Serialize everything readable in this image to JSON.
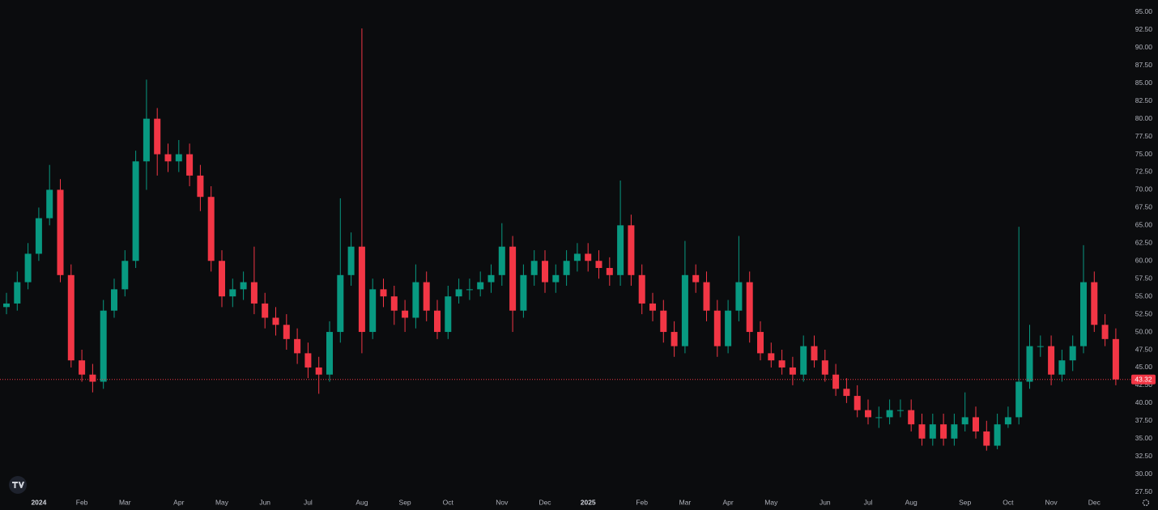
{
  "chart_data": {
    "type": "candlestick",
    "up_color": "#089981",
    "down_color": "#f23645",
    "categories": [
      null,
      null,
      null,
      "2024",
      null,
      null,
      null,
      "Feb",
      null,
      null,
      null,
      "Mar",
      null,
      null,
      null,
      null,
      "Apr",
      null,
      null,
      null,
      "May",
      null,
      null,
      null,
      "Jun",
      null,
      null,
      null,
      "Jul",
      null,
      null,
      null,
      null,
      "Aug",
      null,
      null,
      null,
      "Sep",
      null,
      null,
      null,
      "Oct",
      null,
      null,
      null,
      null,
      "Nov",
      null,
      null,
      null,
      "Dec",
      null,
      null,
      null,
      "2025",
      null,
      null,
      null,
      null,
      "Feb",
      null,
      null,
      null,
      "Mar",
      null,
      null,
      null,
      "Apr",
      null,
      null,
      null,
      "May",
      null,
      null,
      null,
      null,
      "Jun",
      null,
      null,
      null,
      "Jul",
      null,
      null,
      null,
      "Aug",
      null,
      null,
      null,
      null,
      "Sep",
      null,
      null,
      null,
      "Oct",
      null,
      null,
      null,
      "Nov",
      null,
      null,
      null,
      "Dec",
      null,
      null
    ],
    "open": [
      53.5,
      54,
      57,
      61,
      66,
      70,
      58,
      46,
      44,
      43,
      53,
      56,
      60,
      74,
      80,
      75,
      74,
      75,
      72,
      69,
      60,
      55,
      56,
      57,
      54,
      52,
      51,
      49,
      47,
      45,
      44,
      50,
      58,
      62,
      50,
      56,
      55,
      53,
      52,
      57,
      53,
      50,
      55,
      56,
      56,
      57,
      58,
      62,
      53,
      58,
      60,
      57,
      58,
      60,
      61,
      60,
      59,
      58,
      65,
      58,
      54,
      53,
      50,
      48,
      58,
      57,
      53,
      48,
      53,
      57,
      50,
      47,
      46,
      45,
      44,
      48,
      46,
      44,
      42,
      41,
      39,
      38,
      38,
      39,
      39,
      37,
      35,
      37,
      35,
      37,
      38,
      36,
      34,
      37,
      38,
      43,
      48,
      48,
      44,
      46,
      48,
      57,
      51,
      49
    ],
    "high": [
      55.5,
      58.5,
      62.5,
      67.5,
      73.5,
      71.5,
      59.5,
      47.5,
      45.5,
      54.5,
      57.5,
      61.5,
      75.5,
      85.5,
      81.5,
      76.5,
      77,
      76.5,
      73.5,
      70.5,
      61.5,
      57.5,
      58.5,
      62,
      55.5,
      53.5,
      52.5,
      50.5,
      48.5,
      46.5,
      51.5,
      68.8,
      64,
      92.7,
      57.5,
      57.5,
      56.5,
      54.5,
      59.5,
      58.5,
      54.5,
      56.5,
      57.5,
      57.5,
      58.5,
      59.5,
      65.3,
      63.5,
      59.5,
      61.5,
      61.5,
      59.5,
      61.5,
      62.5,
      62.5,
      61.5,
      60.5,
      71.3,
      66.5,
      59.5,
      55.5,
      54.5,
      51.5,
      62.8,
      59.5,
      58.5,
      54.5,
      54.5,
      63.5,
      58.5,
      51.5,
      48.5,
      47.5,
      46.5,
      49.5,
      49.5,
      47.5,
      45.5,
      43.5,
      42.5,
      40.5,
      39.5,
      40.5,
      40.5,
      40.5,
      38.5,
      38.5,
      38.5,
      38.5,
      41.5,
      39.5,
      37.5,
      38.5,
      39.5,
      64.8,
      51,
      49.5,
      49.5,
      47.5,
      49.5,
      62.2,
      58.5,
      52.5,
      50.5
    ],
    "low": [
      52.5,
      53,
      56,
      60,
      65,
      57,
      45,
      43,
      41.5,
      42,
      52,
      55,
      59,
      70,
      72,
      72.5,
      72.5,
      70.5,
      67,
      58.5,
      53.5,
      53.5,
      54.5,
      52.5,
      50.5,
      49.5,
      47.5,
      45.5,
      43.5,
      41.3,
      43,
      48.5,
      56.5,
      47,
      49,
      53.5,
      51,
      50,
      50.5,
      51.5,
      49,
      49,
      54,
      54.5,
      55,
      55.5,
      56.5,
      50,
      52,
      56.5,
      55.5,
      55.5,
      56.5,
      58.5,
      58.5,
      57.5,
      56.5,
      56.5,
      56.5,
      52.5,
      51.5,
      48.5,
      46.5,
      47,
      55.5,
      51.5,
      46.5,
      47,
      51.5,
      48.5,
      46,
      45,
      44,
      42.5,
      43,
      45,
      43,
      41,
      40,
      38,
      37,
      36.5,
      37,
      38,
      36,
      34,
      34,
      34,
      34,
      36,
      35,
      33.3,
      33.5,
      36.5,
      37,
      42,
      46.5,
      42.5,
      43,
      44.5,
      47,
      50,
      48,
      42.5
    ],
    "close": [
      54,
      57,
      61,
      66,
      70,
      58,
      46,
      44,
      43,
      53,
      56,
      60,
      74,
      80,
      75,
      74,
      75,
      72,
      69,
      60,
      55,
      56,
      57,
      54,
      52,
      51,
      49,
      47,
      45,
      44,
      50,
      58,
      62,
      50,
      56,
      55,
      53,
      52,
      57,
      53,
      50,
      55,
      56,
      56,
      57,
      58,
      62,
      53,
      58,
      60,
      57,
      58,
      60,
      61,
      60,
      59,
      58,
      65,
      58,
      54,
      53,
      50,
      48,
      58,
      57,
      53,
      48,
      53,
      57,
      50,
      47,
      46,
      45,
      44,
      48,
      46,
      44,
      42,
      41,
      39,
      38,
      38,
      39,
      39,
      37,
      35,
      37,
      35,
      37,
      38,
      36,
      34,
      37,
      38,
      43,
      48,
      48,
      44,
      46,
      48,
      57,
      51,
      49,
      43.32
    ],
    "last_price": 43.32,
    "ylim": [
      27.0,
      96.7
    ],
    "yticks": [
      {
        "value": 27.5,
        "label": "27.50"
      },
      {
        "value": 30,
        "label": "30.00"
      },
      {
        "value": 32.5,
        "label": "32.50"
      },
      {
        "value": 35,
        "label": "35.00"
      },
      {
        "value": 37.5,
        "label": "37.50"
      },
      {
        "value": 40,
        "label": "40.00"
      },
      {
        "value": 42.5,
        "label": "42.50"
      },
      {
        "value": 45,
        "label": "45.00"
      },
      {
        "value": 47.5,
        "label": "47.50"
      },
      {
        "value": 50,
        "label": "50.00"
      },
      {
        "value": 52.5,
        "label": "52.50"
      },
      {
        "value": 55,
        "label": "55.00"
      },
      {
        "value": 57.5,
        "label": "57.50"
      },
      {
        "value": 60,
        "label": "60.00"
      },
      {
        "value": 62.5,
        "label": "62.50"
      },
      {
        "value": 65,
        "label": "65.00"
      },
      {
        "value": 67.5,
        "label": "67.50"
      },
      {
        "value": 70,
        "label": "70.00"
      },
      {
        "value": 72.5,
        "label": "72.50"
      },
      {
        "value": 75,
        "label": "75.00"
      },
      {
        "value": 77.5,
        "label": "77.50"
      },
      {
        "value": 80,
        "label": "80.00"
      },
      {
        "value": 82.5,
        "label": "82.50"
      },
      {
        "value": 85,
        "label": "85.00"
      },
      {
        "value": 87.5,
        "label": "87.50"
      },
      {
        "value": 90,
        "label": "90.00"
      },
      {
        "value": 92.5,
        "label": "92.50"
      },
      {
        "value": 95,
        "label": "95.00"
      }
    ],
    "grid": false
  }
}
